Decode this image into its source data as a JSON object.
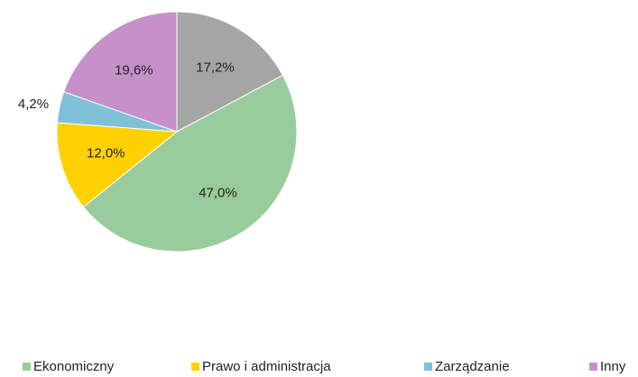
{
  "chart_data": {
    "type": "pie",
    "categories": [
      null,
      "Ekonomiczny",
      "Prawo i administracja",
      "Zarządzanie",
      "Inny"
    ],
    "values": [
      17.2,
      47.0,
      12.0,
      4.2,
      19.6
    ],
    "value_labels": [
      "17,2%",
      "47,0%",
      "12,0%",
      "4,2%",
      "19,6%"
    ],
    "colors": [
      "#a5a5a5",
      "#99cc9c",
      "#ffd100",
      "#80c1d8",
      "#c591c8"
    ],
    "legend": "bottom"
  }
}
